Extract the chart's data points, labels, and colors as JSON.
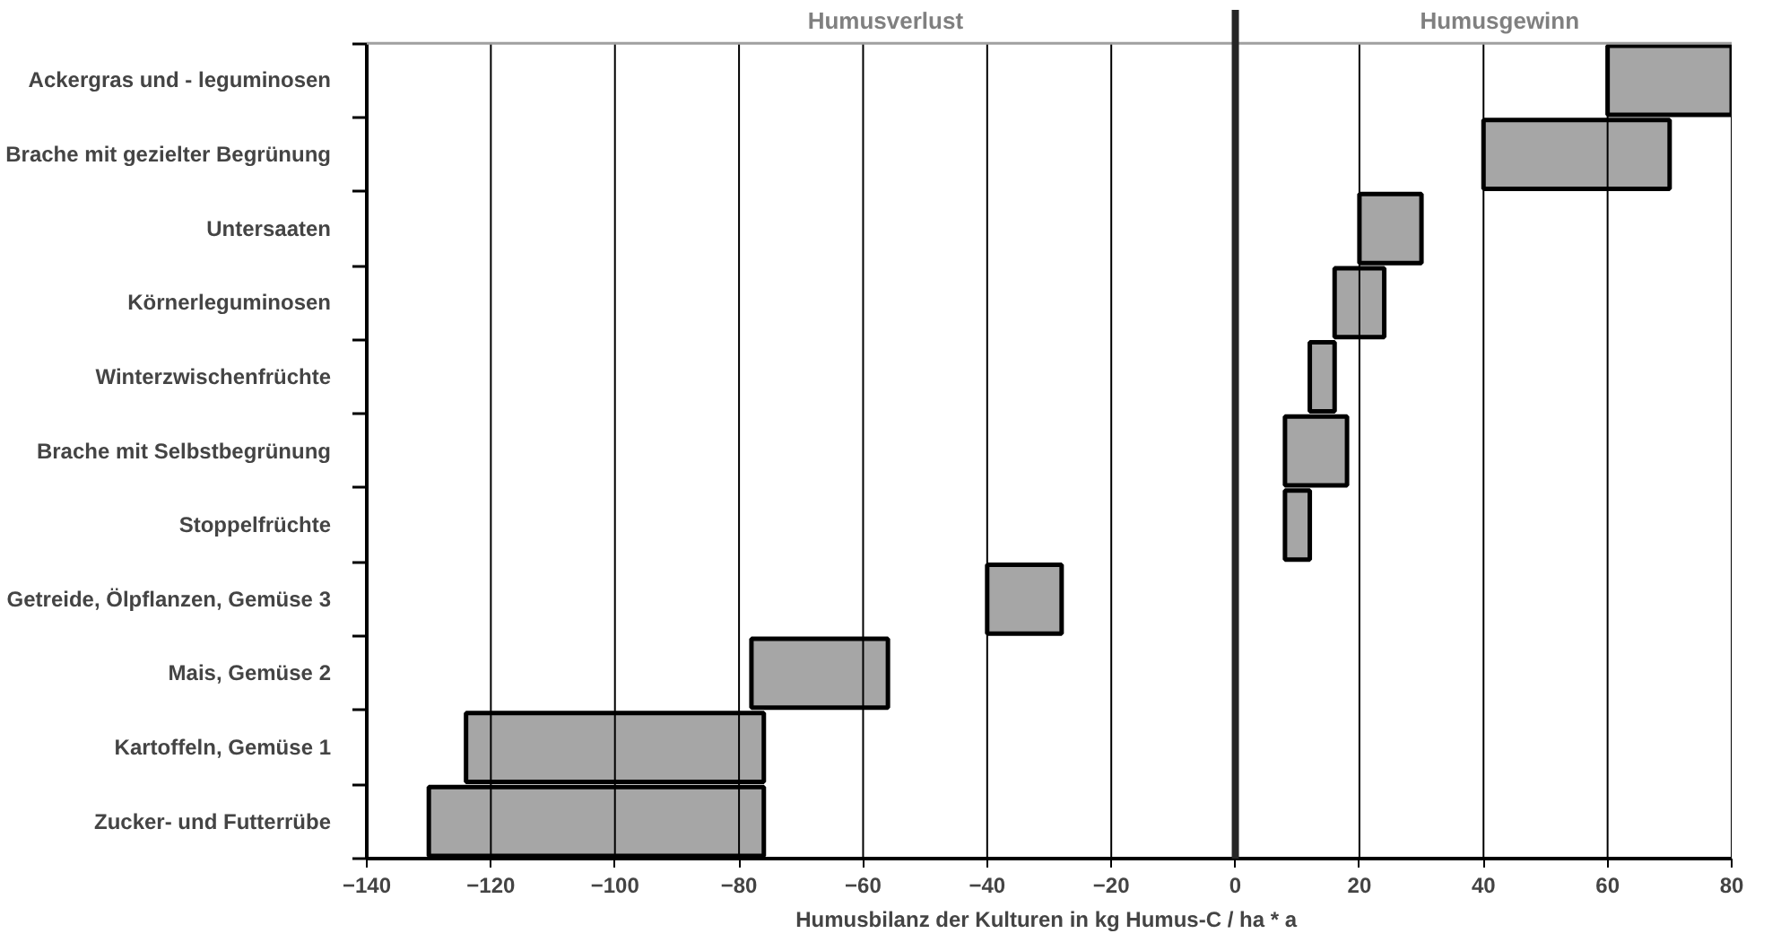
{
  "chart_data": {
    "type": "bar",
    "orientation": "horizontal",
    "xlabel": "Humusbilanz der Kulturen in kg Humus-C /  ha * a",
    "categories": [
      "Ackergras und - leguminosen",
      "Brache mit gezielter Begrünung",
      "Untersaaten",
      "Körnerleguminosen",
      "Winterzwischenfrüchte",
      "Brache mit Selbstbegrünung",
      "Stoppelfrüchte",
      "Getreide, Ölpflanzen, Gemüse 3",
      "Mais, Gemüse 2",
      "Kartoffeln, Gemüse 1",
      "Zucker- und Futterrübe"
    ],
    "base": [
      60,
      40,
      20,
      16,
      12,
      8,
      8,
      -40,
      -78,
      -124,
      -130
    ],
    "values": [
      20,
      30,
      10,
      8,
      4,
      10,
      4,
      12,
      22,
      48,
      54
    ],
    "color": "#a6a6a6",
    "xlim": [
      -140,
      80
    ],
    "xticks": [
      -140,
      -120,
      -100,
      -80,
      -60,
      -40,
      -20,
      0,
      20,
      40,
      60,
      80
    ],
    "grid": "x",
    "ref_lines": [
      {
        "axis": "x",
        "value": 0,
        "color": "#262626"
      }
    ],
    "annotations": [
      "Humusverlust",
      "Humusgewinn"
    ]
  }
}
